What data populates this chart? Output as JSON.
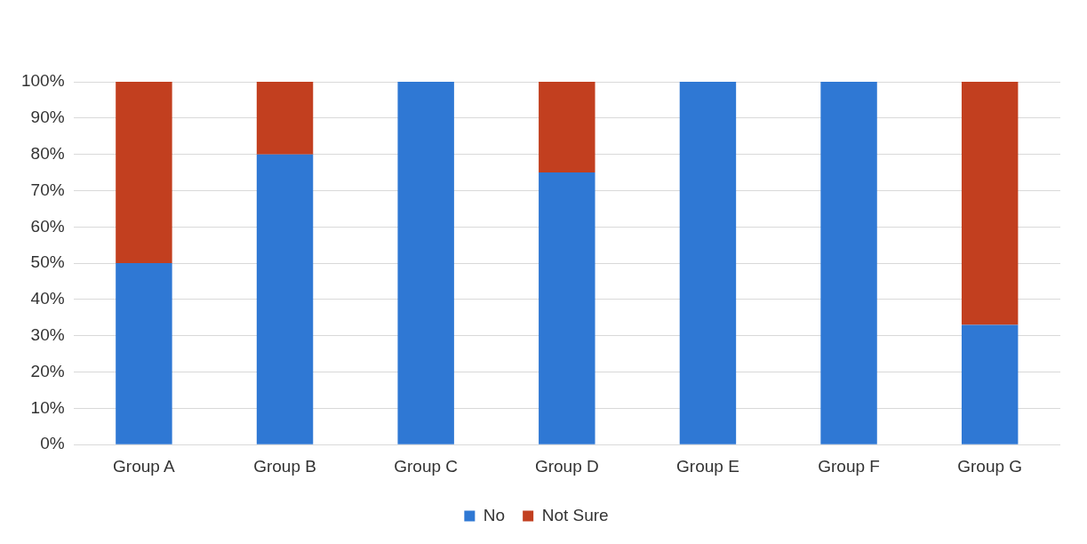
{
  "chart_data": {
    "type": "bar",
    "stacked": true,
    "categories": [
      "Group A",
      "Group B",
      "Group C",
      "Group D",
      "Group E",
      "Group F",
      "Group G"
    ],
    "series": [
      {
        "name": "No",
        "color": "#2f78d4",
        "values": [
          50,
          80,
          100,
          75,
          100,
          100,
          33
        ]
      },
      {
        "name": "Not Sure",
        "color": "#c23f1f",
        "values": [
          50,
          20,
          0,
          25,
          0,
          0,
          67
        ]
      }
    ],
    "ylim": [
      0,
      100
    ],
    "yticks": [
      {
        "value": 0,
        "label": "0%"
      },
      {
        "value": 10,
        "label": "10%"
      },
      {
        "value": 20,
        "label": "20%"
      },
      {
        "value": 30,
        "label": "30%"
      },
      {
        "value": 40,
        "label": "40%"
      },
      {
        "value": 50,
        "label": "50%"
      },
      {
        "value": 60,
        "label": "60%"
      },
      {
        "value": 70,
        "label": "70%"
      },
      {
        "value": 80,
        "label": "80%"
      },
      {
        "value": 90,
        "label": "90%"
      },
      {
        "value": 100,
        "label": "100%"
      }
    ],
    "grid": "y",
    "legend": "bottom"
  }
}
